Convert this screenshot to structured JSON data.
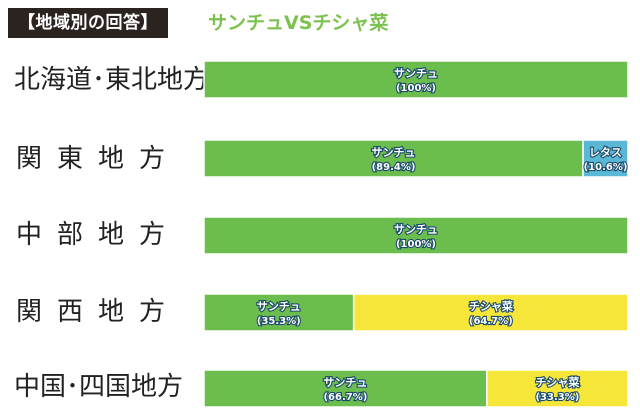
{
  "header": {
    "title": "【地域別の回答】",
    "subtitle": "サンチュVSチシャ菜"
  },
  "colors": {
    "サンチュ": "#6bbd4e",
    "レタス": "#5bb8d4",
    "チシャ菜": "#f7e63a"
  },
  "chart_data": {
    "type": "bar",
    "orientation": "horizontal-stacked",
    "title": "【地域別の回答】",
    "subtitle": "サンチュVSチシャ菜",
    "xlim": [
      0,
      100
    ],
    "grid": false,
    "categories": [
      "北海道･東北地方",
      "関東地方",
      "中部地方",
      "関西地方",
      "中国･四国地方"
    ],
    "rows": [
      {
        "label": "北海道･東北地方",
        "segments": [
          {
            "name": "サンチュ",
            "value": 100,
            "text": "(100%)"
          }
        ]
      },
      {
        "label": "関東地方",
        "segments": [
          {
            "name": "サンチュ",
            "value": 89.4,
            "text": "(89.4%)"
          },
          {
            "name": "レタス",
            "value": 10.6,
            "text": "(10.6%)"
          }
        ]
      },
      {
        "label": "中部地方",
        "segments": [
          {
            "name": "サンチュ",
            "value": 100,
            "text": "(100%)"
          }
        ]
      },
      {
        "label": "関西地方",
        "segments": [
          {
            "name": "サンチュ",
            "value": 35.3,
            "text": "(35.3%)"
          },
          {
            "name": "チシャ菜",
            "value": 64.7,
            "text": "(64.7%)"
          }
        ]
      },
      {
        "label": "中国･四国地方",
        "segments": [
          {
            "name": "サンチュ",
            "value": 66.7,
            "text": "(66.7%)"
          },
          {
            "name": "チシャ菜",
            "value": 33.3,
            "text": "(33.3%)"
          }
        ]
      }
    ]
  }
}
